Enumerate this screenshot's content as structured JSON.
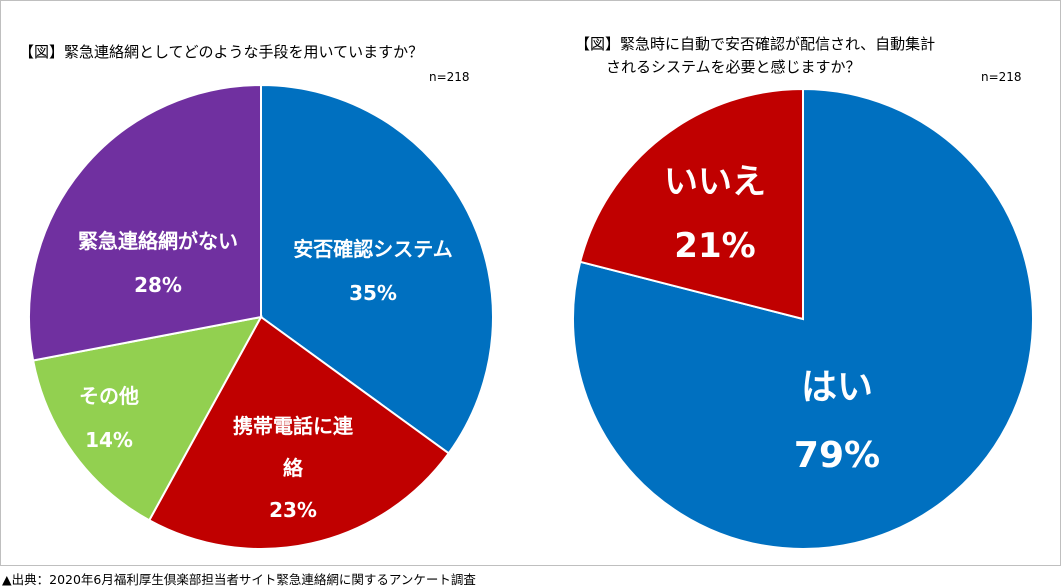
{
  "left_chart": {
    "title": "【図】緊急連絡網としてどのような手段を用いていますか？",
    "n_label": "n=218"
  },
  "right_chart": {
    "title_line1": "【図】緊急時に自動で安否確認が配信され、自動集計",
    "title_line2": "されるシステムを必要と感じますか？",
    "n_label": "n=218"
  },
  "source": "▲出典：2020年6月福利厚生倶楽部担当者サイト緊急連絡網に関するアンケート調査",
  "chart_data": [
    {
      "type": "pie",
      "title": "【図】緊急連絡網としてどのような手段を用いていますか？",
      "n": 218,
      "start": "12 o'clock, clockwise",
      "slices": [
        {
          "label": "安否確認システム",
          "value": 35,
          "pct_label": "35%",
          "color": "#0070c0",
          "label_lines": [
            "安否確認システム"
          ]
        },
        {
          "label": "携帯電話に連絡",
          "value": 23,
          "pct_label": "23%",
          "color": "#c00000",
          "label_lines": [
            "携帯電話に連",
            "絡"
          ]
        },
        {
          "label": "その他",
          "value": 14,
          "pct_label": "14%",
          "color": "#92d050",
          "label_lines": [
            "その他"
          ]
        },
        {
          "label": "緊急連絡網がない",
          "value": 28,
          "pct_label": "28%",
          "color": "#7030a0",
          "label_lines": [
            "緊急連絡網がない"
          ]
        }
      ]
    },
    {
      "type": "pie",
      "title": "【図】緊急時に自動で安否確認が配信され、自動集計されるシステムを必要と感じますか？",
      "n": 218,
      "start": "12 o'clock, clockwise",
      "slices": [
        {
          "label": "はい",
          "value": 79,
          "pct_label": "79%",
          "color": "#0070c0",
          "label_lines": [
            "はい"
          ]
        },
        {
          "label": "いいえ",
          "value": 21,
          "pct_label": "21%",
          "color": "#c00000",
          "label_lines": [
            "いいえ"
          ]
        }
      ]
    }
  ]
}
